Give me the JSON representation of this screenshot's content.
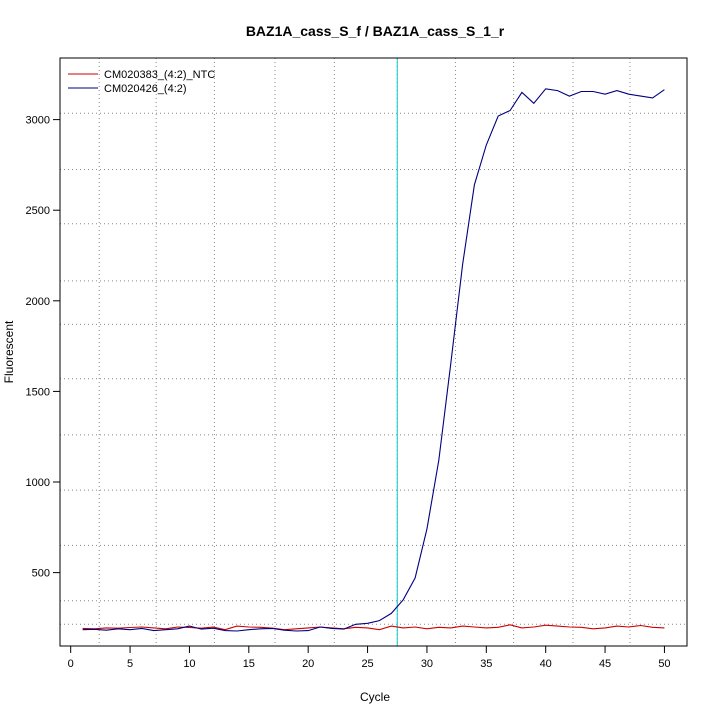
{
  "chart_data": {
    "type": "line",
    "title": "BAZ1A_cass_S_f / BAZ1A_cass_S_1_r",
    "xlabel": "Cycle",
    "ylabel": "Fluorescent",
    "xlim": [
      -0.9,
      51.9
    ],
    "ylim": [
      95,
      3340
    ],
    "x_ticks": [
      0,
      5,
      10,
      15,
      20,
      25,
      30,
      35,
      40,
      45,
      50
    ],
    "y_ticks": [
      500,
      1000,
      1500,
      2000,
      2500,
      3000
    ],
    "grid": true,
    "grid_x": [
      2.4,
      7.2,
      12.1,
      17.2,
      22.2,
      27.5,
      32.4,
      37.3,
      42.3,
      47.1
    ],
    "grid_y": [
      215,
      345,
      650,
      955,
      1260,
      1570,
      1870,
      2110,
      2425,
      2725,
      3035
    ],
    "threshold_cycle": 27.5,
    "threshold_color": "#00cccc",
    "legend_position": "top-left",
    "series": [
      {
        "name": "CM020383_(4:2)_NTC",
        "color": "#cc0000",
        "x": [
          1,
          2,
          3,
          4,
          5,
          6,
          7,
          8,
          9,
          10,
          11,
          12,
          13,
          14,
          15,
          16,
          17,
          18,
          19,
          20,
          21,
          22,
          23,
          24,
          25,
          26,
          27,
          28,
          29,
          30,
          31,
          32,
          33,
          34,
          35,
          36,
          37,
          38,
          39,
          40,
          41,
          42,
          43,
          44,
          45,
          46,
          47,
          48,
          49,
          50
        ],
        "values": [
          192,
          190,
          195,
          193,
          197,
          200,
          195,
          190,
          200,
          197,
          193,
          200,
          185,
          205,
          200,
          198,
          193,
          185,
          190,
          195,
          200,
          195,
          190,
          198,
          195,
          185,
          205,
          195,
          200,
          190,
          198,
          195,
          205,
          200,
          195,
          198,
          212,
          195,
          200,
          210,
          205,
          200,
          198,
          190,
          195,
          205,
          200,
          208,
          198,
          195
        ]
      },
      {
        "name": "CM020426_(4:2)",
        "color": "#000080",
        "x": [
          1,
          2,
          3,
          4,
          5,
          6,
          7,
          8,
          9,
          10,
          11,
          12,
          13,
          14,
          15,
          16,
          17,
          18,
          19,
          20,
          21,
          22,
          23,
          24,
          25,
          26,
          27,
          28,
          29,
          30,
          31,
          32,
          33,
          34,
          35,
          36,
          37,
          38,
          39,
          40,
          41,
          42,
          43,
          44,
          45,
          46,
          47,
          48,
          49,
          50
        ],
        "values": [
          185,
          187,
          182,
          190,
          185,
          192,
          180,
          185,
          190,
          205,
          188,
          193,
          180,
          178,
          185,
          190,
          192,
          182,
          178,
          180,
          200,
          192,
          188,
          215,
          220,
          235,
          275,
          350,
          470,
          740,
          1120,
          1650,
          2200,
          2640,
          2860,
          3020,
          3050,
          3150,
          3090,
          3170,
          3160,
          3130,
          3155,
          3155,
          3140,
          3160,
          3140,
          3130,
          3120,
          3165
        ]
      }
    ]
  }
}
